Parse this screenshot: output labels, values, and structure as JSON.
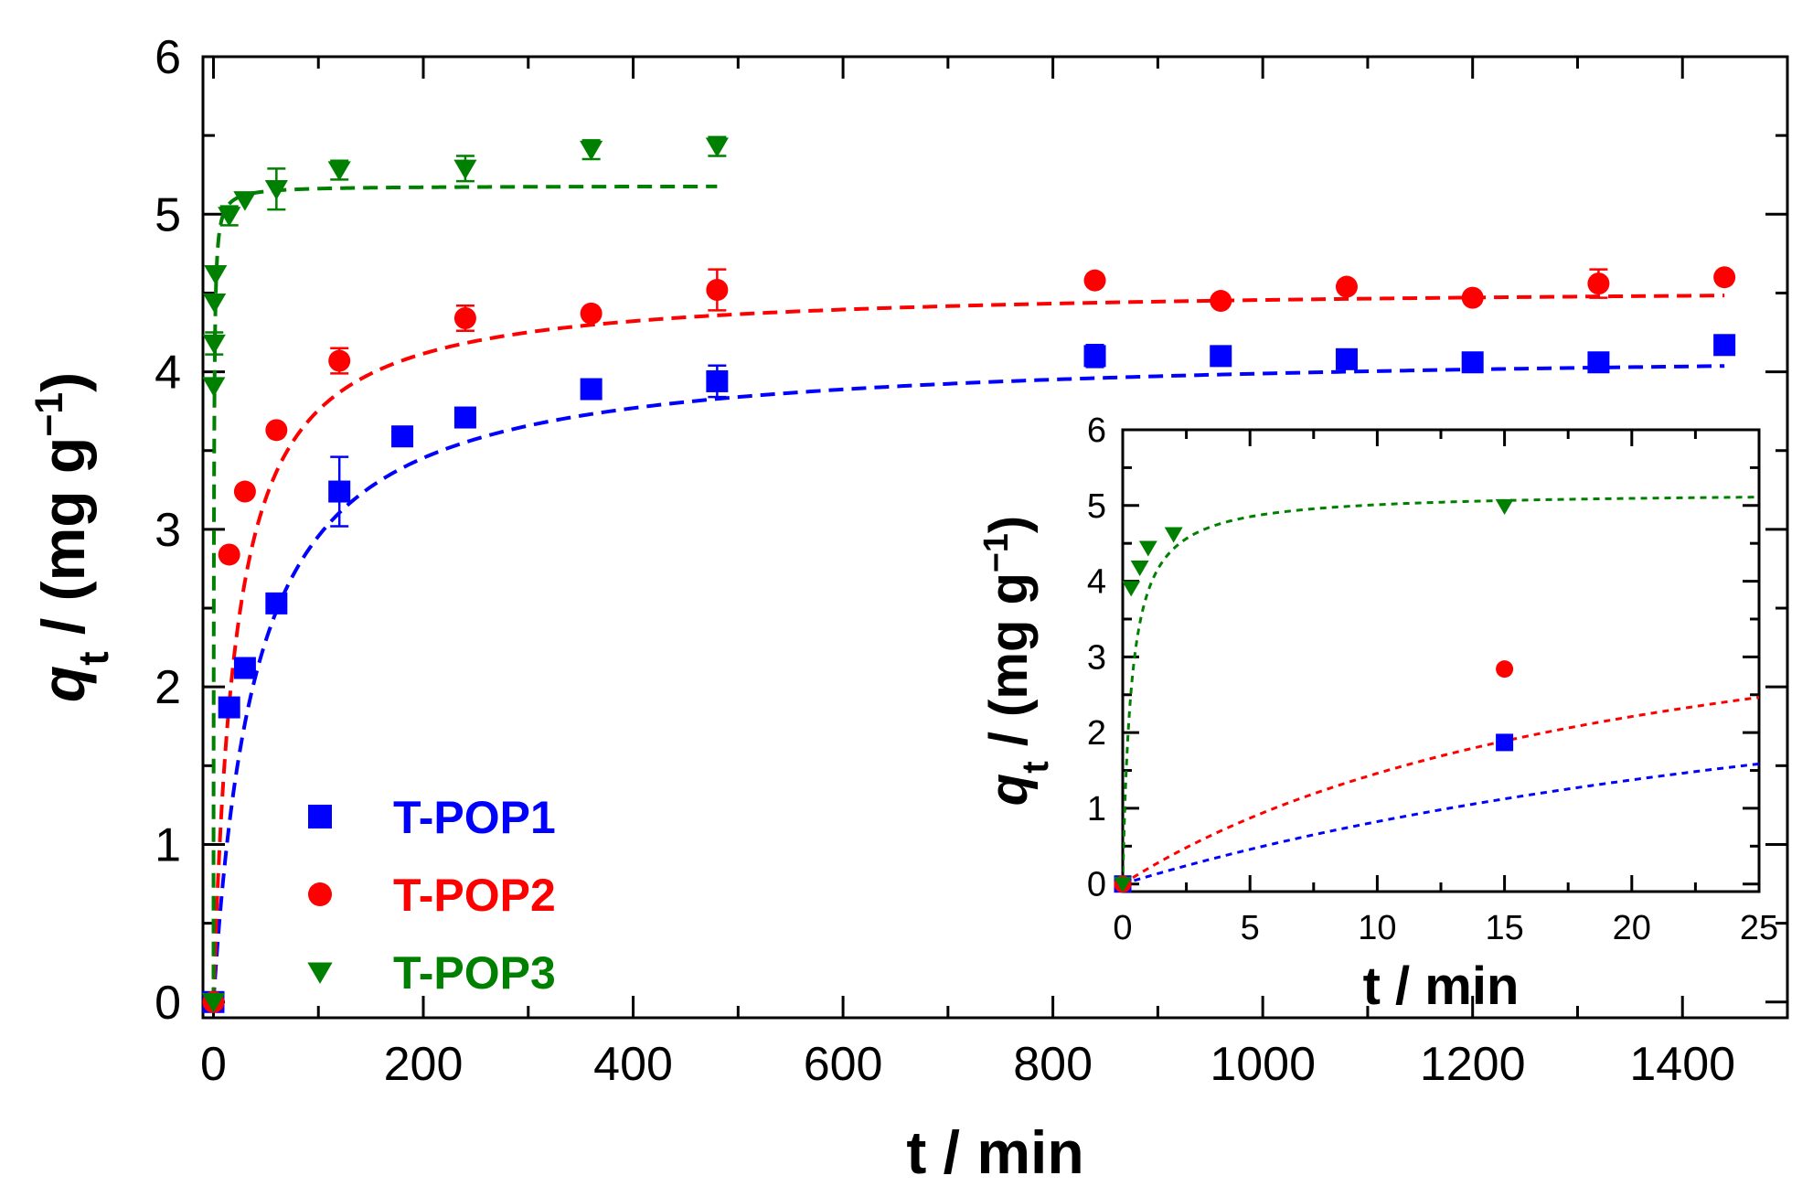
{
  "chart_data": [
    {
      "id": "main",
      "type": "scatter",
      "xlabel": "t / min",
      "ylabel": {
        "var": "q",
        "sub": "t",
        "unit": " / (mg g",
        "sup": "−1",
        "close": ")"
      },
      "xlim": [
        -10,
        1500
      ],
      "ylim": [
        -0.1,
        6
      ],
      "xticks": [
        0,
        200,
        400,
        600,
        800,
        1000,
        1200,
        1400
      ],
      "yticks": [
        0,
        1,
        2,
        3,
        4,
        5,
        6
      ],
      "legend": "bottom-left",
      "series": [
        {
          "name": "T-POP1",
          "color": "#0000ff",
          "marker": "square",
          "points": [
            {
              "x": 0,
              "y": 0
            },
            {
              "x": 15,
              "y": 1.87
            },
            {
              "x": 30,
              "y": 2.12
            },
            {
              "x": 60,
              "y": 2.53
            },
            {
              "x": 120,
              "y": 3.24,
              "err": 0.22
            },
            {
              "x": 180,
              "y": 3.59
            },
            {
              "x": 240,
              "y": 3.71
            },
            {
              "x": 360,
              "y": 3.89
            },
            {
              "x": 480,
              "y": 3.94,
              "err": 0.1
            },
            {
              "x": 840,
              "y": 4.1,
              "err": 0.07
            },
            {
              "x": 960,
              "y": 4.1
            },
            {
              "x": 1080,
              "y": 4.08
            },
            {
              "x": 1200,
              "y": 4.06
            },
            {
              "x": 1320,
              "y": 4.06
            },
            {
              "x": 1440,
              "y": 4.17
            }
          ],
          "fit": {
            "qe": 4.15,
            "k": 0.00597,
            "tmax": 1440
          }
        },
        {
          "name": "T-POP2",
          "color": "#ff0000",
          "marker": "circle",
          "points": [
            {
              "x": 0,
              "y": 0
            },
            {
              "x": 15,
              "y": 2.84
            },
            {
              "x": 30,
              "y": 3.24
            },
            {
              "x": 60,
              "y": 3.63
            },
            {
              "x": 120,
              "y": 4.07,
              "err": 0.08
            },
            {
              "x": 240,
              "y": 4.34,
              "err": 0.08
            },
            {
              "x": 360,
              "y": 4.37
            },
            {
              "x": 480,
              "y": 4.52,
              "err": 0.13
            },
            {
              "x": 840,
              "y": 4.58
            },
            {
              "x": 960,
              "y": 4.45
            },
            {
              "x": 1080,
              "y": 4.54
            },
            {
              "x": 1200,
              "y": 4.47
            },
            {
              "x": 1320,
              "y": 4.56,
              "err": 0.09
            },
            {
              "x": 1440,
              "y": 4.6
            }
          ],
          "fit": {
            "qe": 4.55,
            "k": 0.0104,
            "tmax": 1440
          }
        },
        {
          "name": "T-POP3",
          "color": "#008000",
          "marker": "triangle-down",
          "points": [
            {
              "x": 0,
              "y": 0
            },
            {
              "x": 0.33,
              "y": 3.91
            },
            {
              "x": 0.67,
              "y": 4.18,
              "err": 0.07
            },
            {
              "x": 1,
              "y": 4.44
            },
            {
              "x": 2,
              "y": 4.62
            },
            {
              "x": 15,
              "y": 4.99,
              "err": 0.06
            },
            {
              "x": 30,
              "y": 5.09
            },
            {
              "x": 60,
              "y": 5.16,
              "err": 0.13
            },
            {
              "x": 120,
              "y": 5.28,
              "err": 0.06
            },
            {
              "x": 240,
              "y": 5.29,
              "err": 0.08
            },
            {
              "x": 360,
              "y": 5.41,
              "err": 0.06
            },
            {
              "x": 480,
              "y": 5.43,
              "err": 0.06
            }
          ],
          "fit": {
            "qe": 5.18,
            "k": 0.57,
            "tmax": 480
          }
        }
      ]
    },
    {
      "id": "inset",
      "type": "scatter",
      "xlabel": "t / min",
      "ylabel": {
        "var": "q",
        "sub": "t",
        "unit": " / (mg g",
        "sup": "−1",
        "close": ")"
      },
      "xlim": [
        0,
        25
      ],
      "ylim": [
        -0.1,
        6
      ],
      "xticks": [
        0,
        5,
        10,
        15,
        20,
        25
      ],
      "yticks": [
        0,
        1,
        2,
        3,
        4,
        5,
        6
      ],
      "series": [
        {
          "name": "T-POP1",
          "color": "#0000ff",
          "marker": "square",
          "points": [
            {
              "x": 0,
              "y": 0
            },
            {
              "x": 15,
              "y": 1.87
            }
          ],
          "fit": {
            "qe": 4.15,
            "k": 0.00597,
            "tmax": 25
          }
        },
        {
          "name": "T-POP2",
          "color": "#ff0000",
          "marker": "circle",
          "points": [
            {
              "x": 0,
              "y": 0
            },
            {
              "x": 15,
              "y": 2.84
            }
          ],
          "fit": {
            "qe": 4.55,
            "k": 0.0104,
            "tmax": 25
          }
        },
        {
          "name": "T-POP3",
          "color": "#008000",
          "marker": "triangle-down",
          "points": [
            {
              "x": 0,
              "y": 0
            },
            {
              "x": 0.33,
              "y": 3.91
            },
            {
              "x": 0.67,
              "y": 4.18
            },
            {
              "x": 1,
              "y": 4.44
            },
            {
              "x": 2,
              "y": 4.62
            },
            {
              "x": 15,
              "y": 4.99
            }
          ],
          "fit": {
            "qe": 5.18,
            "k": 0.57,
            "tmax": 25
          }
        }
      ]
    }
  ]
}
